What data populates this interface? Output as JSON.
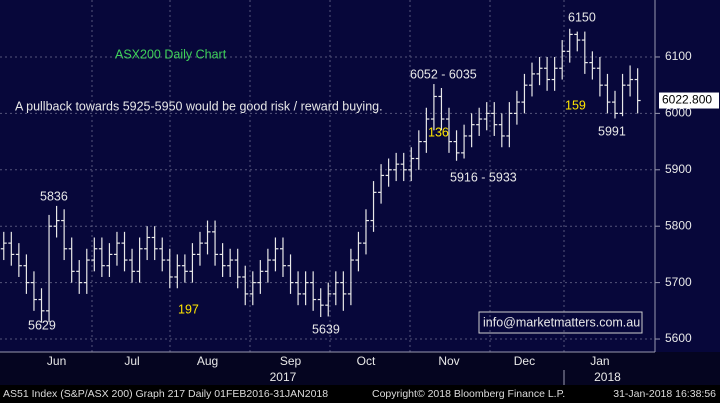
{
  "chart_data": {
    "type": "ohlc",
    "title": "ASX200 Daily Chart",
    "color": "#e8e8e8",
    "grid": true,
    "ylim": [
      5577,
      6201
    ],
    "yticks": [
      5600,
      5700,
      5800,
      5900,
      6000,
      6100
    ],
    "xlim": [
      -0.5,
      86.3
    ],
    "xticks": [
      {
        "value": 7,
        "label": "Jun"
      },
      {
        "value": 17,
        "label": "Jul"
      },
      {
        "value": 27,
        "label": "Aug"
      },
      {
        "value": 38,
        "label": "Sep"
      },
      {
        "value": 48,
        "label": "Oct"
      },
      {
        "value": 59,
        "label": "Nov"
      },
      {
        "value": 69,
        "label": "Dec"
      },
      {
        "value": 79,
        "label": "Jan"
      }
    ],
    "x_group_labels": [
      {
        "value": 37,
        "label": "2017"
      },
      {
        "value": 80,
        "label": "2018"
      }
    ],
    "last_value": {
      "value": 6022.8,
      "label": "6022.800"
    },
    "open": [
      5760,
      5770,
      5750,
      5730,
      5700,
      5670,
      5650,
      5800,
      5810,
      5760,
      5720,
      5700,
      5740,
      5760,
      5730,
      5750,
      5770,
      5740,
      5720,
      5760,
      5780,
      5760,
      5740,
      5710,
      5730,
      5720,
      5750,
      5770,
      5790,
      5750,
      5730,
      5740,
      5710,
      5680,
      5700,
      5720,
      5740,
      5760,
      5730,
      5700,
      5680,
      5700,
      5670,
      5660,
      5680,
      5700,
      5680,
      5740,
      5770,
      5810,
      5860,
      5890,
      5900,
      5910,
      5900,
      5920,
      5950,
      5990,
      6030,
      5990,
      5950,
      5930,
      5960,
      5980,
      5990,
      6000,
      5980,
      5960,
      6000,
      6020,
      6050,
      6070,
      6080,
      6060,
      6080,
      6110,
      6140,
      6130,
      6090,
      6080,
      6050,
      6020,
      6000,
      6050,
      6060
    ],
    "high": [
      5790,
      5790,
      5770,
      5750,
      5720,
      5690,
      5820,
      5836,
      5830,
      5780,
      5740,
      5760,
      5780,
      5780,
      5770,
      5790,
      5790,
      5760,
      5780,
      5800,
      5800,
      5780,
      5760,
      5750,
      5750,
      5770,
      5790,
      5810,
      5810,
      5770,
      5760,
      5760,
      5730,
      5720,
      5740,
      5760,
      5780,
      5780,
      5750,
      5720,
      5720,
      5720,
      5690,
      5700,
      5720,
      5720,
      5760,
      5790,
      5830,
      5880,
      5910,
      5920,
      5930,
      5930,
      5940,
      5970,
      6010,
      6052,
      6045,
      6010,
      5970,
      5980,
      6000,
      6010,
      6020,
      6020,
      6000,
      6020,
      6040,
      6070,
      6090,
      6100,
      6100,
      6100,
      6130,
      6150,
      6145,
      6145,
      6110,
      6100,
      6070,
      6040,
      6070,
      6085,
      6080
    ],
    "low": [
      5740,
      5730,
      5710,
      5680,
      5650,
      5629,
      5630,
      5780,
      5740,
      5700,
      5680,
      5680,
      5720,
      5710,
      5710,
      5730,
      5720,
      5700,
      5700,
      5740,
      5740,
      5720,
      5690,
      5690,
      5700,
      5700,
      5730,
      5750,
      5730,
      5710,
      5710,
      5690,
      5660,
      5660,
      5680,
      5700,
      5720,
      5710,
      5680,
      5660,
      5660,
      5650,
      5639,
      5640,
      5660,
      5650,
      5660,
      5720,
      5750,
      5790,
      5840,
      5870,
      5880,
      5880,
      5880,
      5900,
      5930,
      5970,
      5970,
      5930,
      5916,
      5920,
      5940,
      5960,
      5970,
      5960,
      5940,
      5940,
      5980,
      6000,
      6030,
      6050,
      6040,
      6040,
      6060,
      6090,
      6110,
      6070,
      6060,
      6030,
      6000,
      5991,
      5995,
      6030,
      6000
    ],
    "close": [
      5770,
      5750,
      5730,
      5700,
      5670,
      5650,
      5800,
      5810,
      5760,
      5720,
      5700,
      5740,
      5760,
      5730,
      5750,
      5770,
      5740,
      5720,
      5760,
      5780,
      5760,
      5740,
      5710,
      5730,
      5720,
      5750,
      5770,
      5790,
      5750,
      5730,
      5740,
      5710,
      5680,
      5700,
      5720,
      5740,
      5760,
      5730,
      5700,
      5680,
      5700,
      5670,
      5660,
      5680,
      5700,
      5680,
      5740,
      5770,
      5810,
      5860,
      5890,
      5900,
      5910,
      5900,
      5920,
      5950,
      5990,
      6030,
      5990,
      5950,
      5930,
      5960,
      5980,
      5990,
      6000,
      5980,
      5960,
      6000,
      6020,
      6050,
      6070,
      6080,
      6060,
      6080,
      6110,
      6140,
      6130,
      6090,
      6080,
      6050,
      6020,
      6000,
      6050,
      6060,
      6022.8
    ],
    "annotations": [
      "A pullback towards 5925-5950 would be good risk / reward buying.",
      "6052 - 6035",
      "136",
      "5916 - 5933",
      "159",
      "6150",
      "5991",
      "5836",
      "5629",
      "197",
      "5639",
      "info@marketmatters.com.au"
    ],
    "footer": {
      "left": "AS51 Index (S&P/ASX 200) Graph 217  Daily 01FEB2016-31JAN2018",
      "middle": "Copyright© 2018 Bloomberg Finance L.P.",
      "right": "31-Jan-2018 16:38:56"
    }
  }
}
